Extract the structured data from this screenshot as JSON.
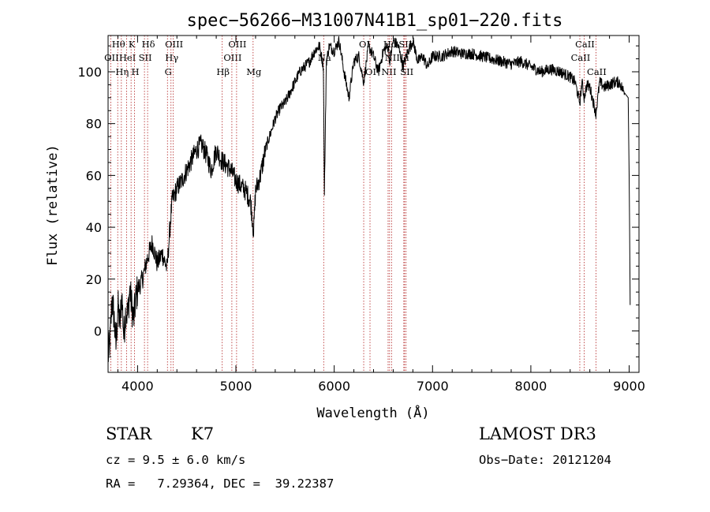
{
  "chart_data": {
    "type": "line",
    "title": "spec−56266−M31007N41B1_sp01−220.fits",
    "xlabel": "Wavelength (Å)",
    "ylabel": "Flux (relative)",
    "xlim": [
      3700,
      9100
    ],
    "ylim": [
      -16,
      114
    ],
    "x_ticks": [
      4000,
      5000,
      6000,
      7000,
      8000,
      9000
    ],
    "y_ticks": [
      0,
      20,
      40,
      60,
      80,
      100
    ],
    "y_tick_labels": [
      "0",
      "20",
      "40",
      "60",
      "80",
      "100"
    ],
    "series": [
      {
        "name": "flux",
        "x": [
          3700,
          3720,
          3740,
          3760,
          3780,
          3800,
          3820,
          3840,
          3860,
          3880,
          3900,
          3920,
          3940,
          3960,
          3980,
          4000,
          4050,
          4100,
          4150,
          4200,
          4250,
          4300,
          4330,
          4350,
          4400,
          4450,
          4500,
          4550,
          4600,
          4650,
          4700,
          4750,
          4800,
          4850,
          4900,
          4950,
          5000,
          5050,
          5100,
          5150,
          5180,
          5200,
          5250,
          5300,
          5350,
          5400,
          5450,
          5500,
          5550,
          5600,
          5650,
          5700,
          5750,
          5800,
          5850,
          5890,
          5900,
          5920,
          5950,
          6000,
          6050,
          6100,
          6150,
          6200,
          6250,
          6300,
          6350,
          6400,
          6450,
          6500,
          6550,
          6563,
          6600,
          6650,
          6700,
          6750,
          6800,
          6850,
          6900,
          6950,
          7000,
          7100,
          7200,
          7300,
          7400,
          7500,
          7600,
          7700,
          7800,
          7900,
          8000,
          8100,
          8200,
          8300,
          8400,
          8450,
          8498,
          8520,
          8542,
          8570,
          8600,
          8662,
          8700,
          8750,
          8800,
          8850,
          8900,
          8950,
          8990,
          9000,
          9010
        ],
        "y": [
          -10,
          -4,
          12,
          6,
          -6,
          10,
          2,
          14,
          -2,
          8,
          6,
          16,
          10,
          4,
          12,
          16,
          20,
          28,
          34,
          26,
          30,
          24,
          40,
          50,
          55,
          58,
          62,
          66,
          70,
          72,
          68,
          62,
          70,
          66,
          64,
          62,
          58,
          56,
          54,
          50,
          38,
          54,
          60,
          70,
          76,
          82,
          86,
          88,
          92,
          96,
          100,
          102,
          104,
          108,
          110,
          102,
          52,
          104,
          110,
          108,
          112,
          100,
          90,
          104,
          106,
          96,
          110,
          106,
          100,
          108,
          110,
          104,
          112,
          110,
          102,
          108,
          112,
          104,
          106,
          102,
          106,
          106,
          108,
          107,
          107,
          106,
          105,
          104,
          103,
          104,
          102,
          100,
          101,
          100,
          98,
          96,
          88,
          96,
          90,
          95,
          94,
          84,
          96,
          94,
          95,
          96,
          96,
          92,
          90,
          60,
          10
        ]
      }
    ],
    "spectral_lines": [
      {
        "label": "Hθ",
        "wl": 3798,
        "row": 0
      },
      {
        "label": "OII",
        "wl": 3727,
        "row": 1
      },
      {
        "label": "Hη",
        "wl": 3835,
        "row": 2
      },
      {
        "label": "HeI",
        "wl": 3889,
        "row": 1
      },
      {
        "label": "K",
        "wl": 3934,
        "row": 0
      },
      {
        "label": "H",
        "wl": 3969,
        "row": 2
      },
      {
        "label": "SII",
        "wl": 4070,
        "row": 1
      },
      {
        "label": "Hδ",
        "wl": 4102,
        "row": 0
      },
      {
        "label": "G",
        "wl": 4304,
        "row": 2
      },
      {
        "label": "Hγ",
        "wl": 4340,
        "row": 1
      },
      {
        "label": "OIII",
        "wl": 4363,
        "row": 0
      },
      {
        "label": "Hβ",
        "wl": 4861,
        "row": 2
      },
      {
        "label": "OIII",
        "wl": 4959,
        "row": 1
      },
      {
        "label": "OIII",
        "wl": 5007,
        "row": 0
      },
      {
        "label": "Mg",
        "wl": 5175,
        "row": 2
      },
      {
        "label": "Na",
        "wl": 5893,
        "row": 1
      },
      {
        "label": "OI",
        "wl": 6300,
        "row": 0
      },
      {
        "label": "OI",
        "wl": 6364,
        "row": 2
      },
      {
        "label": "NII",
        "wl": 6548,
        "row": 2
      },
      {
        "label": "Hα",
        "wl": 6563,
        "row": 0
      },
      {
        "label": "NII",
        "wl": 6583,
        "row": 1
      },
      {
        "label": "Li",
        "wl": 6708,
        "row": 1
      },
      {
        "label": "SII",
        "wl": 6716,
        "row": 0
      },
      {
        "label": "SII",
        "wl": 6731,
        "row": 2
      },
      {
        "label": "CaII",
        "wl": 8498,
        "row": 1
      },
      {
        "label": "CaII",
        "wl": 8542,
        "row": 0
      },
      {
        "label": "CaII",
        "wl": 8662,
        "row": 2
      }
    ]
  },
  "info": {
    "class_label": "STAR",
    "subclass": "K7",
    "survey": "LAMOST DR3",
    "cz": "cz = 9.5 ± 6.0 km/s",
    "obs_date": "Obs−Date: 20121204",
    "radec": "RA =   7.29364, DEC =  39.22387"
  }
}
